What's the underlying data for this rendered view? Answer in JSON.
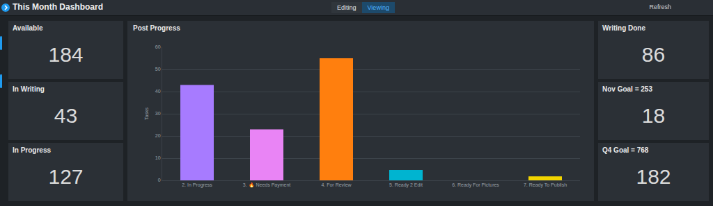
{
  "header": {
    "title": "This Month Dashboard",
    "modes": [
      "Editing",
      "Viewing"
    ],
    "active_mode": "Viewing",
    "actions": [
      "Refresh"
    ]
  },
  "cards_left": [
    {
      "title": "Available",
      "value": 184
    },
    {
      "title": "In Writing",
      "value": 43
    },
    {
      "title": "In Progress",
      "value": 127
    }
  ],
  "cards_right": [
    {
      "title": "Writing Done",
      "value": 86
    },
    {
      "title": "Nov Goal = 253",
      "value": 18
    },
    {
      "title": "Q4 Goal = 768",
      "value": 182
    }
  ],
  "chart_data": {
    "type": "bar",
    "title": "Post Progress",
    "y_label": "Tasks",
    "categories": [
      "2. In Progress",
      "3. 🔥 Needs Payment",
      "4. For Review",
      "5. Ready 2 Edit",
      "6. Ready For Pictures",
      "7. Ready To Publish"
    ],
    "values": [
      43,
      23,
      55,
      4.7,
      0,
      1.8
    ],
    "colors": [
      "#a77bff",
      "#e984f5",
      "#ff7f0e",
      "#00b4d0",
      "#8c8c8c",
      "#f2d400"
    ],
    "ylim": [
      0,
      60
    ],
    "yticks": [
      0,
      10,
      20,
      30,
      40,
      50,
      60
    ],
    "grid": true
  }
}
